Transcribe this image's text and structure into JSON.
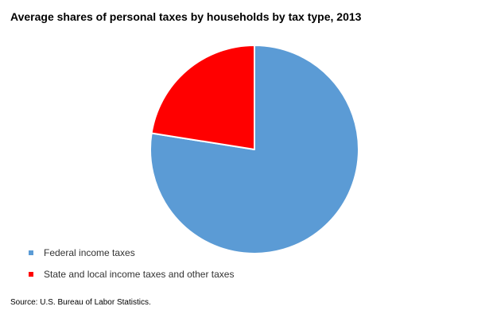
{
  "chart_data": {
    "type": "pie",
    "title": "Average shares of personal taxes by households by tax type, 2013",
    "slices": [
      {
        "label": "Federal income taxes",
        "value": 77.5,
        "color": "#5b9bd5"
      },
      {
        "label": "State and local income taxes and other taxes",
        "value": 22.5,
        "color": "#ff0000"
      }
    ],
    "start_angle_degrees": 0,
    "direction": "clockwise",
    "slice_border_color": "#ffffff",
    "legend_position": "bottom-left",
    "source": "Source: U.S. Bureau of Labor Statistics."
  }
}
